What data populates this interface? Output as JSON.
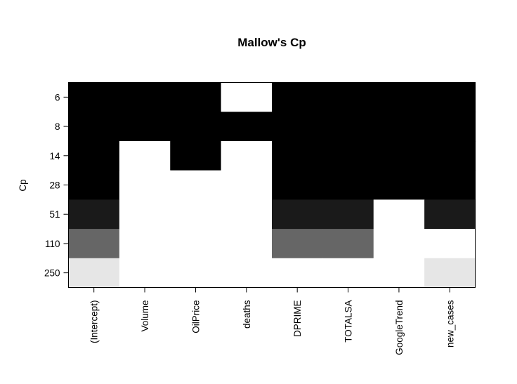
{
  "chart_data": {
    "type": "heatmap",
    "title": "Mallow's Cp",
    "xlabel": "",
    "ylabel": "Cp",
    "categories": [
      "(Intercept)",
      "Volume",
      "OilPrice",
      "deaths",
      "DPRIME",
      "TOTALSA",
      "GoogleTrend",
      "new_cases"
    ],
    "rows": [
      "6",
      "8",
      "14",
      "28",
      "51",
      "110",
      "250"
    ],
    "row_shades": [
      "#000000",
      "#000000",
      "#000000",
      "#000000",
      "#1a1a1a",
      "#666666",
      "#e6e6e6"
    ],
    "included": [
      [
        1,
        1,
        1,
        0,
        1,
        1,
        1,
        1
      ],
      [
        1,
        1,
        1,
        1,
        1,
        1,
        1,
        1
      ],
      [
        1,
        0,
        1,
        0,
        1,
        1,
        1,
        1
      ],
      [
        1,
        0,
        0,
        0,
        1,
        1,
        1,
        1
      ],
      [
        1,
        0,
        0,
        0,
        1,
        1,
        0,
        1
      ],
      [
        1,
        0,
        0,
        0,
        1,
        1,
        0,
        0
      ],
      [
        1,
        0,
        0,
        0,
        0,
        0,
        0,
        1
      ]
    ],
    "grid": false,
    "legend": "none"
  }
}
